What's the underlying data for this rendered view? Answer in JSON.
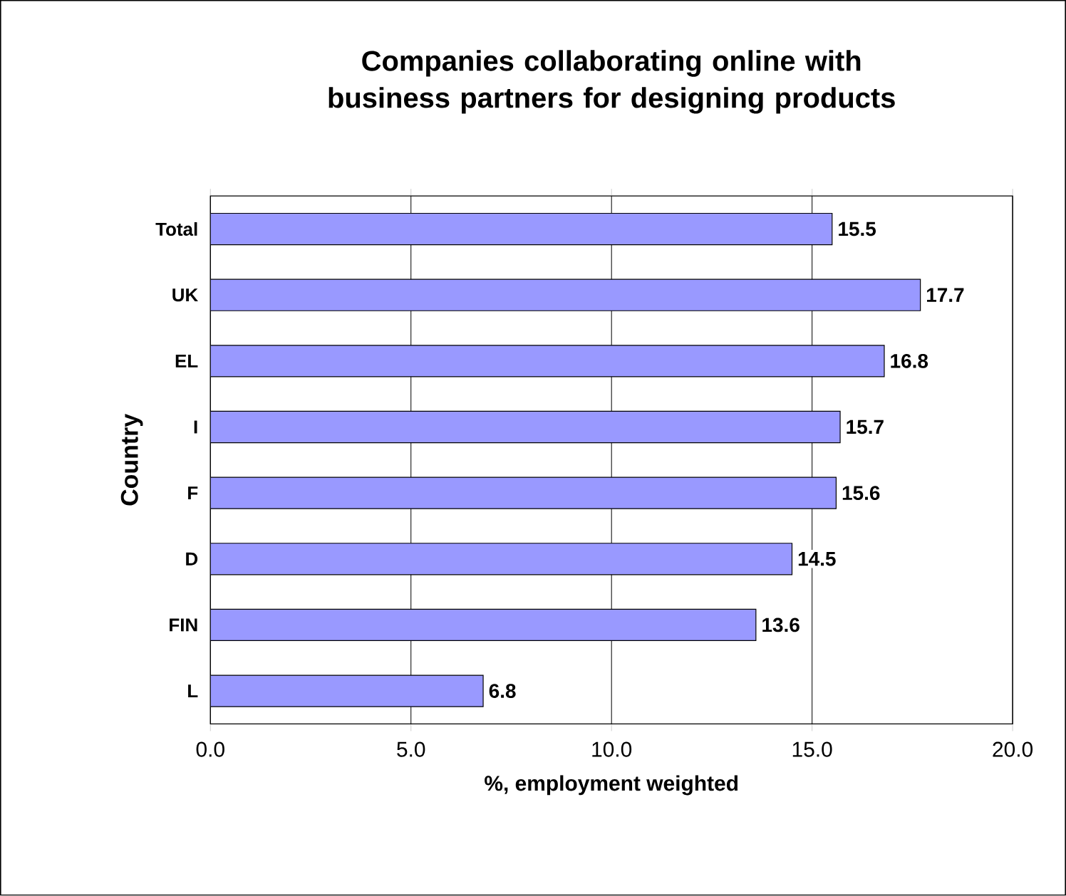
{
  "chart_data": {
    "type": "bar",
    "orientation": "horizontal",
    "title": "Companies collaborating online with business partners for designing products",
    "xlabel": "%, employment weighted",
    "ylabel": "Country",
    "categories": [
      "Total",
      "UK",
      "EL",
      "I",
      "F",
      "D",
      "FIN",
      "L"
    ],
    "values": [
      15.5,
      17.7,
      16.8,
      15.7,
      15.6,
      14.5,
      13.6,
      6.8
    ],
    "color": "#9999ff",
    "data_labels": true,
    "grid": "x",
    "xlim": [
      0,
      20
    ],
    "xticks": [
      {
        "value": 0,
        "label": "0.0"
      },
      {
        "value": 5,
        "label": "5.0"
      },
      {
        "value": 10,
        "label": "10.0"
      },
      {
        "value": 15,
        "label": "15.0"
      },
      {
        "value": 20,
        "label": "20.0"
      }
    ]
  }
}
